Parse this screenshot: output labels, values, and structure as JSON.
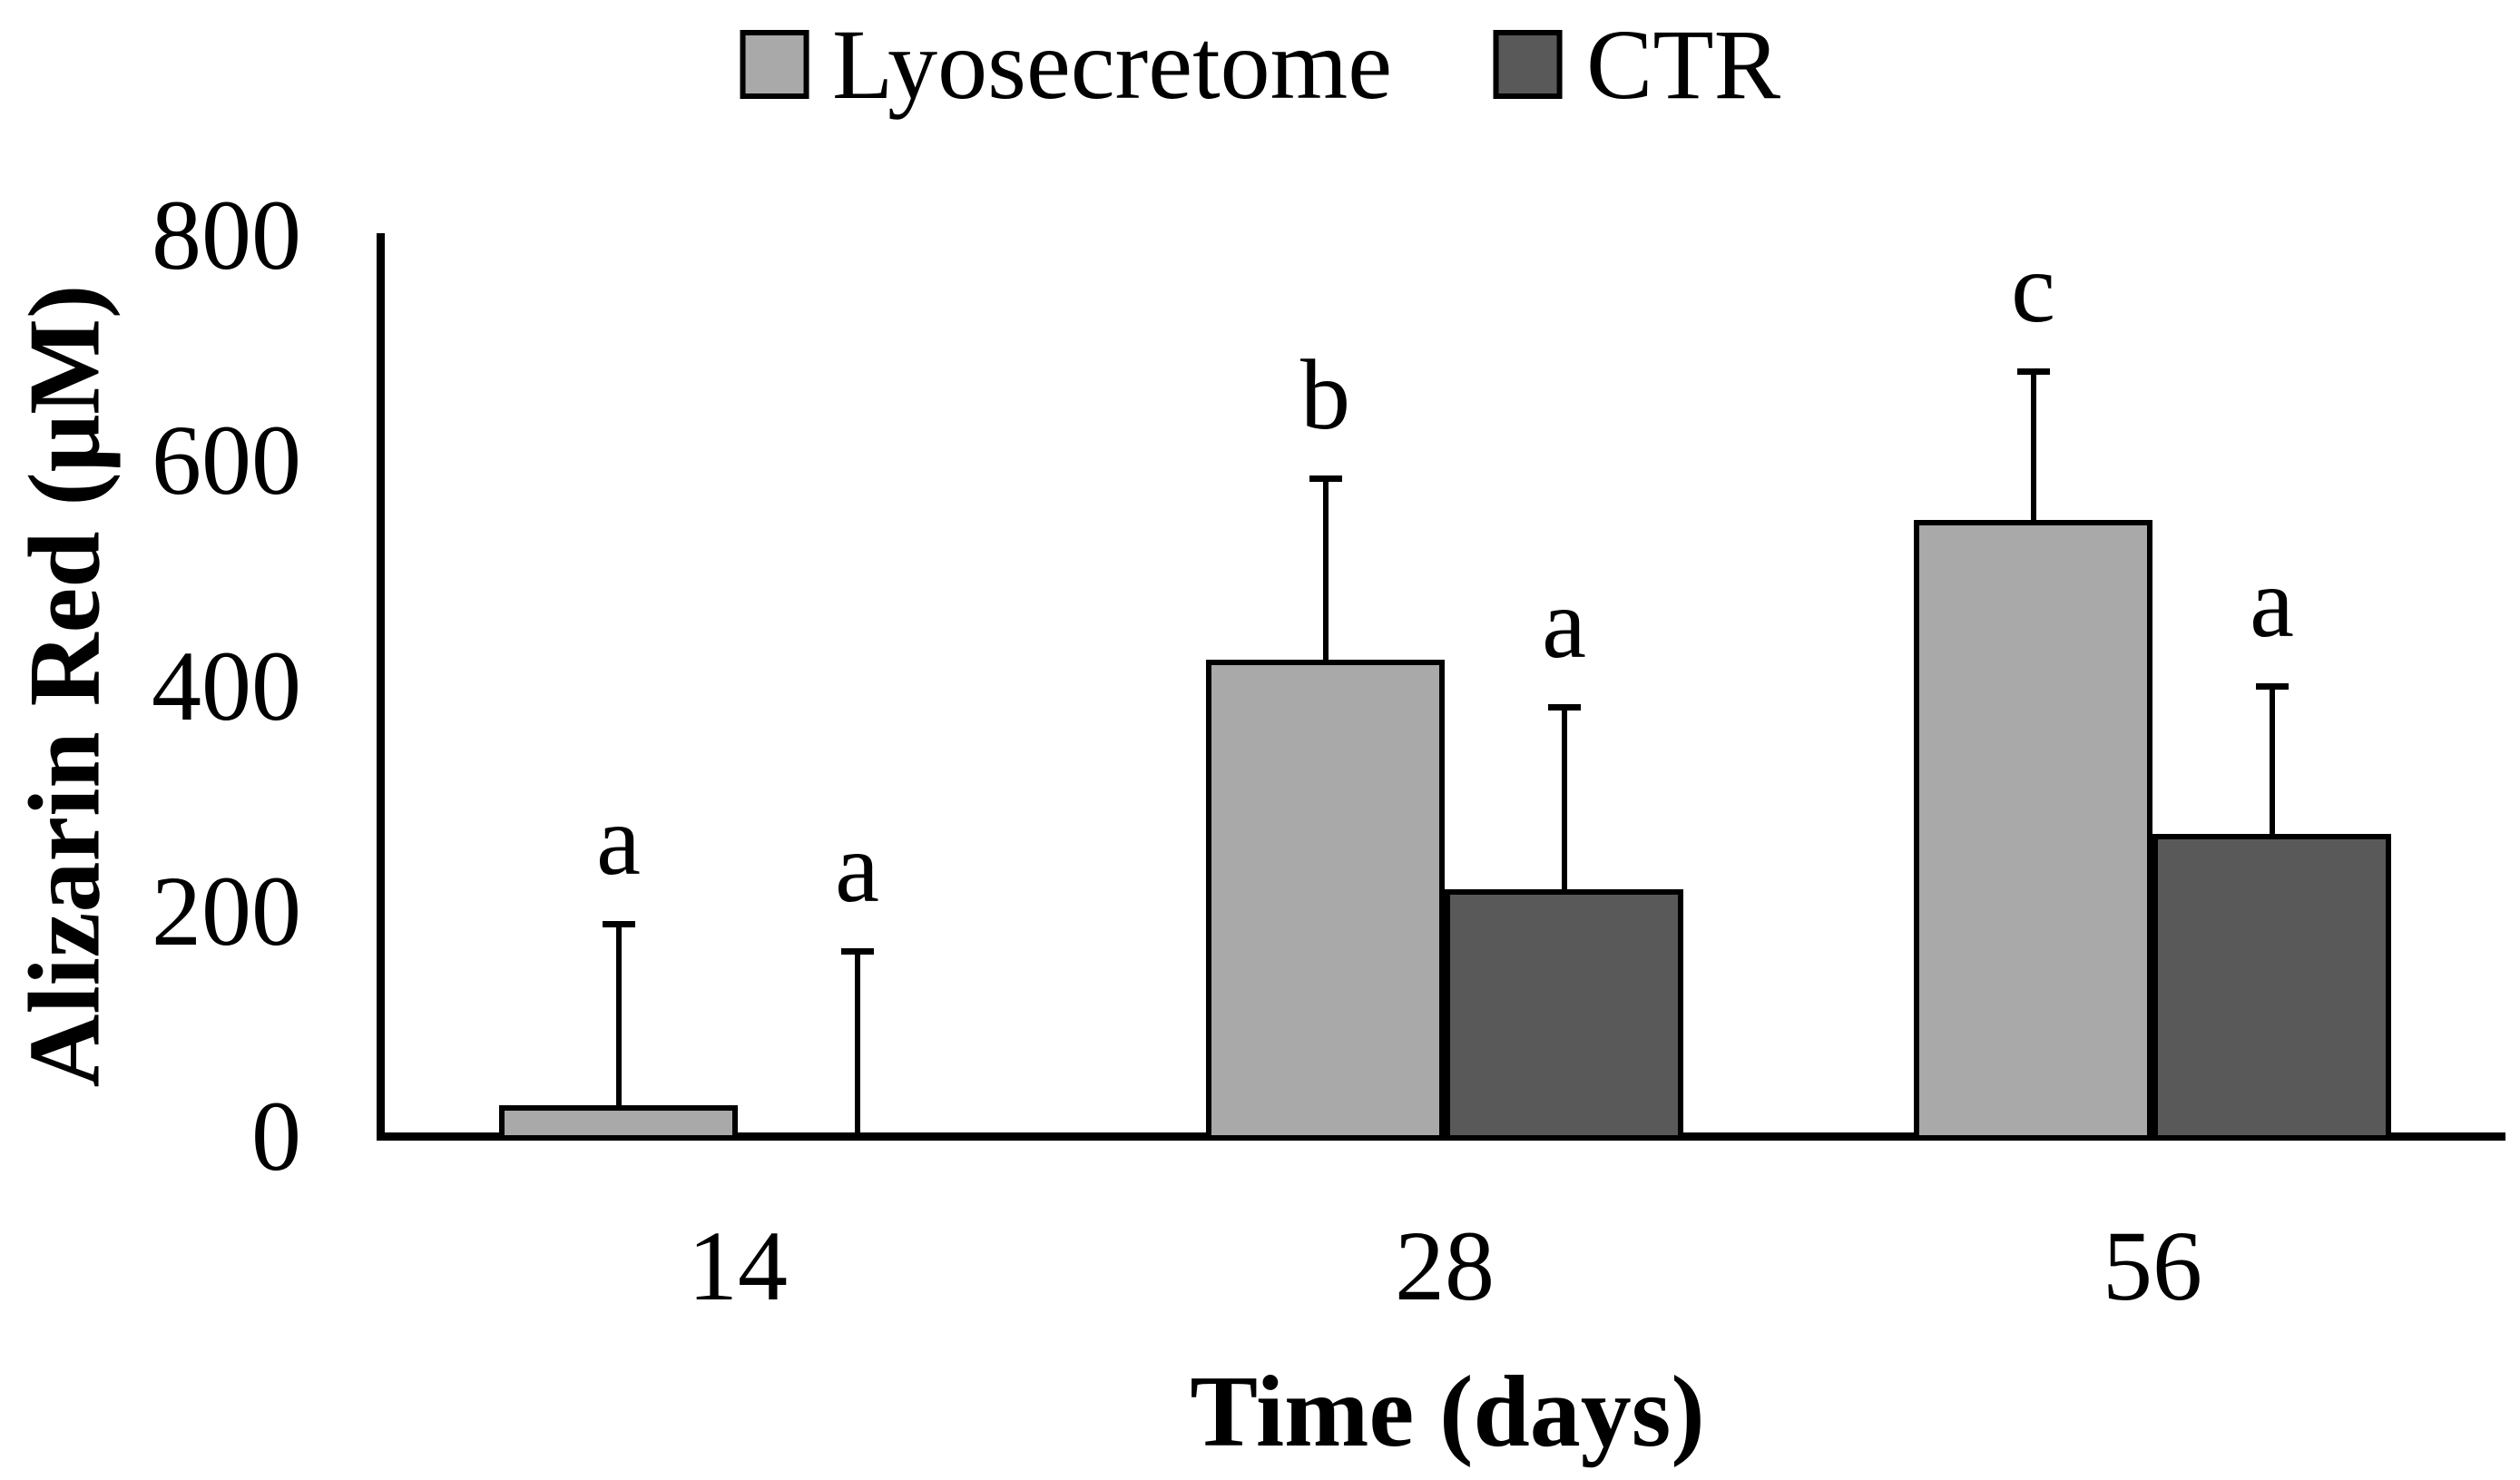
{
  "legend": {
    "items": [
      {
        "label": "Lyosecretome",
        "color": "#a9a9a9"
      },
      {
        "label": "CTR",
        "color": "#595959"
      }
    ]
  },
  "axes": {
    "y_label": "Alizarin Red (μM)",
    "x_label": "Time (days)"
  },
  "chart_data": {
    "type": "bar",
    "title": "",
    "categories": [
      "14",
      "28",
      "56"
    ],
    "xlabel": "Time (days)",
    "ylabel": "Alizarin Red (μM)",
    "ylim": [
      0,
      800
    ],
    "yticks": [
      0,
      200,
      400,
      600,
      800
    ],
    "grid": false,
    "legend_position": "top",
    "bar_outline_color": "#000000",
    "error_bar_direction": "plus",
    "series": [
      {
        "name": "Lyosecretome",
        "color": "#a9a9a9",
        "values": [
          27,
          423,
          547
        ],
        "errors": [
          163,
          163,
          134
        ],
        "sig_letters": [
          "a",
          "b",
          "c"
        ]
      },
      {
        "name": "CTR",
        "color": "#595959",
        "values": [
          0,
          219,
          268
        ],
        "errors": [
          166,
          164,
          133
        ],
        "sig_letters": [
          "a",
          "a",
          "a"
        ]
      }
    ]
  }
}
